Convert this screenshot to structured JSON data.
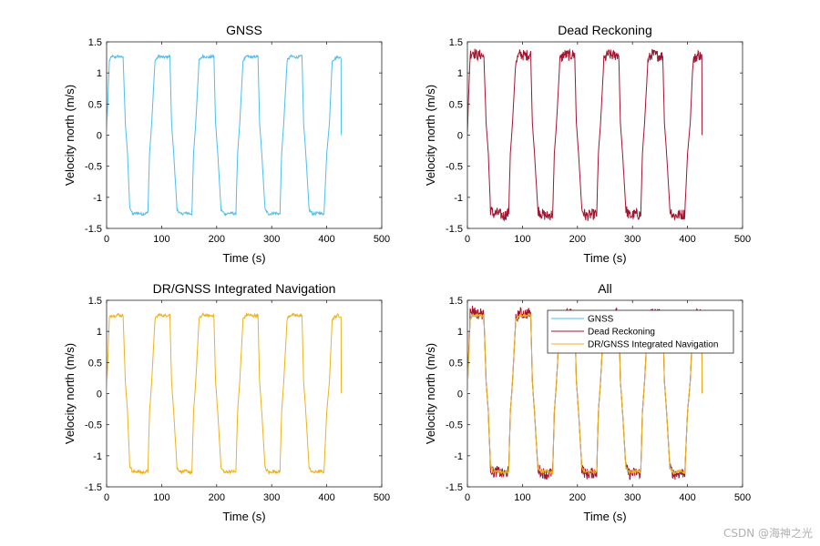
{
  "figure": {
    "watermark": "CSDN @海神之光"
  },
  "chart_data": [
    {
      "type": "line",
      "title": "GNSS",
      "xlabel": "Time (s)",
      "ylabel": "Velocity north (m/s)",
      "xlim": [
        0,
        500
      ],
      "ylim": [
        -1.5,
        1.5
      ],
      "xticks": [
        0,
        100,
        200,
        300,
        400,
        500
      ],
      "yticks": [
        -1.5,
        -1,
        -0.5,
        0,
        0.5,
        1,
        1.5
      ],
      "series": [
        {
          "name": "GNSS",
          "color": "#4DBEEE",
          "noise": 0.02,
          "x": [
            0,
            2,
            5,
            10,
            15,
            20,
            25,
            30,
            34,
            38,
            42,
            47,
            55,
            65,
            75,
            78,
            82,
            88,
            95,
            105,
            115,
            118,
            122,
            128,
            135,
            145,
            155,
            158,
            162,
            168,
            175,
            185,
            195,
            198,
            202,
            208,
            215,
            225,
            235,
            238,
            242,
            248,
            255,
            265,
            275,
            278,
            282,
            288,
            295,
            305,
            315,
            318,
            322,
            328,
            335,
            345,
            355,
            358,
            362,
            368,
            375,
            385,
            395,
            400,
            405,
            410,
            420,
            426,
            426.5
          ],
          "y": [
            0,
            0.5,
            1.2,
            1.27,
            1.25,
            1.27,
            1.26,
            1.25,
            0.2,
            -0.3,
            -1.15,
            -1.27,
            -1.25,
            -1.27,
            -1.25,
            -0.3,
            0.2,
            1.2,
            1.27,
            1.25,
            1.27,
            0.2,
            -0.3,
            -1.2,
            -1.27,
            -1.25,
            -1.27,
            -0.3,
            0.2,
            1.2,
            1.27,
            1.25,
            1.27,
            0.2,
            -0.3,
            -1.2,
            -1.27,
            -1.25,
            -1.27,
            -0.3,
            0.2,
            1.2,
            1.27,
            1.25,
            1.27,
            0.2,
            -0.3,
            -1.2,
            -1.27,
            -1.25,
            -1.27,
            -0.3,
            0.2,
            1.2,
            1.27,
            1.25,
            1.27,
            0.2,
            -0.3,
            -1.2,
            -1.27,
            -1.25,
            -1.27,
            -0.3,
            0.2,
            1.2,
            1.26,
            1.24,
            0
          ]
        }
      ]
    },
    {
      "type": "line",
      "title": "Dead Reckoning",
      "xlabel": "Time (s)",
      "ylabel": "Velocity north (m/s)",
      "xlim": [
        0,
        500
      ],
      "ylim": [
        -1.5,
        1.5
      ],
      "xticks": [
        0,
        100,
        200,
        300,
        400,
        500
      ],
      "yticks": [
        -1.5,
        -1,
        -0.5,
        0,
        0.5,
        1,
        1.5
      ],
      "series": [
        {
          "name": "Dead Reckoning",
          "color": "#A2142F",
          "noise": 0.09,
          "x": [
            0,
            2,
            5,
            10,
            15,
            20,
            25,
            30,
            34,
            38,
            42,
            47,
            55,
            65,
            75,
            78,
            82,
            88,
            95,
            105,
            115,
            118,
            122,
            128,
            135,
            145,
            155,
            158,
            162,
            168,
            175,
            185,
            195,
            198,
            202,
            208,
            215,
            225,
            235,
            238,
            242,
            248,
            255,
            265,
            275,
            278,
            282,
            288,
            295,
            305,
            315,
            318,
            322,
            328,
            335,
            345,
            355,
            358,
            362,
            368,
            375,
            385,
            395,
            400,
            405,
            410,
            420,
            426,
            426.5
          ],
          "y": [
            0,
            0.6,
            1.3,
            1.35,
            1.3,
            1.28,
            1.3,
            1.25,
            0.2,
            -0.3,
            -1.2,
            -1.27,
            -1.25,
            -1.3,
            -1.25,
            -0.3,
            0.2,
            1.2,
            1.3,
            1.28,
            1.3,
            0.2,
            -0.3,
            -1.2,
            -1.27,
            -1.3,
            -1.27,
            -0.3,
            0.2,
            1.2,
            1.3,
            1.28,
            1.3,
            0.2,
            -0.3,
            -1.2,
            -1.3,
            -1.28,
            -1.27,
            -0.3,
            0.2,
            1.2,
            1.3,
            1.28,
            1.3,
            0.2,
            -0.3,
            -1.2,
            -1.3,
            -1.27,
            -1.28,
            -0.3,
            0.2,
            1.2,
            1.3,
            1.28,
            1.27,
            0.2,
            -0.3,
            -1.2,
            -1.3,
            -1.28,
            -1.27,
            -0.3,
            0.2,
            1.2,
            1.3,
            1.25,
            0
          ]
        }
      ]
    },
    {
      "type": "line",
      "title": "DR/GNSS Integrated Navigation",
      "xlabel": "Time (s)",
      "ylabel": "Velocity north (m/s)",
      "xlim": [
        0,
        500
      ],
      "ylim": [
        -1.5,
        1.5
      ],
      "xticks": [
        0,
        100,
        200,
        300,
        400,
        500
      ],
      "yticks": [
        -1.5,
        -1,
        -0.5,
        0,
        0.5,
        1,
        1.5
      ],
      "series": [
        {
          "name": "DR/GNSS Integrated Navigation",
          "color": "#EDB120",
          "noise": 0.025,
          "x": [
            0,
            2,
            5,
            10,
            15,
            20,
            25,
            30,
            34,
            38,
            42,
            47,
            55,
            65,
            75,
            78,
            82,
            88,
            95,
            105,
            115,
            118,
            122,
            128,
            135,
            145,
            155,
            158,
            162,
            168,
            175,
            185,
            195,
            198,
            202,
            208,
            215,
            225,
            235,
            238,
            242,
            248,
            255,
            265,
            275,
            278,
            282,
            288,
            295,
            305,
            315,
            318,
            322,
            328,
            335,
            345,
            355,
            358,
            362,
            368,
            375,
            385,
            395,
            400,
            405,
            410,
            420,
            426,
            426.5
          ],
          "y": [
            0,
            0.5,
            1.22,
            1.26,
            1.25,
            1.27,
            1.26,
            1.25,
            0.2,
            -0.3,
            -1.15,
            -1.26,
            -1.25,
            -1.27,
            -1.25,
            -0.3,
            0.2,
            1.2,
            1.27,
            1.25,
            1.27,
            0.2,
            -0.3,
            -1.2,
            -1.26,
            -1.25,
            -1.27,
            -0.3,
            0.2,
            1.2,
            1.27,
            1.25,
            1.26,
            0.2,
            -0.3,
            -1.2,
            -1.27,
            -1.25,
            -1.26,
            -0.3,
            0.2,
            1.2,
            1.27,
            1.25,
            1.26,
            0.2,
            -0.3,
            -1.2,
            -1.27,
            -1.25,
            -1.26,
            -0.3,
            0.2,
            1.2,
            1.27,
            1.25,
            1.26,
            0.2,
            -0.3,
            -1.2,
            -1.27,
            -1.25,
            -1.26,
            -0.3,
            0.2,
            1.2,
            1.26,
            1.24,
            0
          ]
        }
      ]
    },
    {
      "type": "line",
      "title": "All",
      "xlabel": "Time (s)",
      "ylabel": "Velocity north (m/s)",
      "xlim": [
        0,
        500
      ],
      "ylim": [
        -1.5,
        1.5
      ],
      "xticks": [
        0,
        100,
        200,
        300,
        400,
        500
      ],
      "yticks": [
        -1.5,
        -1,
        -0.5,
        0,
        0.5,
        1,
        1.5
      ],
      "legend": {
        "position": "top-right",
        "entries": [
          "GNSS",
          "Dead Reckoning",
          "DR/GNSS Integrated Navigation"
        ]
      },
      "series": [
        {
          "name": "GNSS",
          "color": "#4DBEEE",
          "noise": 0.02,
          "x": [
            0,
            2,
            5,
            10,
            15,
            20,
            25,
            30,
            34,
            38,
            42,
            47,
            55,
            65,
            75,
            78,
            82,
            88,
            95,
            105,
            115,
            118,
            122,
            128,
            135,
            145,
            155,
            158,
            162,
            168,
            175,
            185,
            195,
            198,
            202,
            208,
            215,
            225,
            235,
            238,
            242,
            248,
            255,
            265,
            275,
            278,
            282,
            288,
            295,
            305,
            315,
            318,
            322,
            328,
            335,
            345,
            355,
            358,
            362,
            368,
            375,
            385,
            395,
            400,
            405,
            410,
            420,
            426,
            426.5
          ],
          "y": [
            0,
            0.5,
            1.2,
            1.27,
            1.25,
            1.27,
            1.26,
            1.25,
            0.2,
            -0.3,
            -1.15,
            -1.27,
            -1.25,
            -1.27,
            -1.25,
            -0.3,
            0.2,
            1.2,
            1.27,
            1.25,
            1.27,
            0.2,
            -0.3,
            -1.2,
            -1.27,
            -1.25,
            -1.27,
            -0.3,
            0.2,
            1.2,
            1.27,
            1.25,
            1.27,
            0.2,
            -0.3,
            -1.2,
            -1.27,
            -1.25,
            -1.27,
            -0.3,
            0.2,
            1.2,
            1.27,
            1.25,
            1.27,
            0.2,
            -0.3,
            -1.2,
            -1.27,
            -1.25,
            -1.27,
            -0.3,
            0.2,
            1.2,
            1.27,
            1.25,
            1.27,
            0.2,
            -0.3,
            -1.2,
            -1.27,
            -1.25,
            -1.27,
            -0.3,
            0.2,
            1.2,
            1.26,
            1.24,
            0
          ]
        },
        {
          "name": "Dead Reckoning",
          "color": "#A2142F",
          "noise": 0.09,
          "x": [
            0,
            2,
            5,
            10,
            15,
            20,
            25,
            30,
            34,
            38,
            42,
            47,
            55,
            65,
            75,
            78,
            82,
            88,
            95,
            105,
            115,
            118,
            122,
            128,
            135,
            145,
            155,
            158,
            162,
            168,
            175,
            185,
            195,
            198,
            202,
            208,
            215,
            225,
            235,
            238,
            242,
            248,
            255,
            265,
            275,
            278,
            282,
            288,
            295,
            305,
            315,
            318,
            322,
            328,
            335,
            345,
            355,
            358,
            362,
            368,
            375,
            385,
            395,
            400,
            405,
            410,
            420,
            426,
            426.5
          ],
          "y": [
            0,
            0.6,
            1.3,
            1.35,
            1.3,
            1.28,
            1.3,
            1.25,
            0.2,
            -0.3,
            -1.2,
            -1.27,
            -1.25,
            -1.3,
            -1.25,
            -0.3,
            0.2,
            1.2,
            1.3,
            1.28,
            1.3,
            0.2,
            -0.3,
            -1.2,
            -1.27,
            -1.3,
            -1.27,
            -0.3,
            0.2,
            1.2,
            1.3,
            1.28,
            1.3,
            0.2,
            -0.3,
            -1.2,
            -1.3,
            -1.28,
            -1.27,
            -0.3,
            0.2,
            1.2,
            1.3,
            1.28,
            1.3,
            0.2,
            -0.3,
            -1.2,
            -1.3,
            -1.27,
            -1.28,
            -0.3,
            0.2,
            1.2,
            1.3,
            1.28,
            1.27,
            0.2,
            -0.3,
            -1.2,
            -1.3,
            -1.28,
            -1.27,
            -0.3,
            0.2,
            1.2,
            1.3,
            1.25,
            0
          ]
        },
        {
          "name": "DR/GNSS Integrated Navigation",
          "color": "#EDB120",
          "noise": 0.025,
          "x": [
            0,
            2,
            5,
            10,
            15,
            20,
            25,
            30,
            34,
            38,
            42,
            47,
            55,
            65,
            75,
            78,
            82,
            88,
            95,
            105,
            115,
            118,
            122,
            128,
            135,
            145,
            155,
            158,
            162,
            168,
            175,
            185,
            195,
            198,
            202,
            208,
            215,
            225,
            235,
            238,
            242,
            248,
            255,
            265,
            275,
            278,
            282,
            288,
            295,
            305,
            315,
            318,
            322,
            328,
            335,
            345,
            355,
            358,
            362,
            368,
            375,
            385,
            395,
            400,
            405,
            410,
            420,
            426,
            426.5
          ],
          "y": [
            0,
            0.5,
            1.22,
            1.26,
            1.25,
            1.27,
            1.26,
            1.25,
            0.2,
            -0.3,
            -1.15,
            -1.26,
            -1.25,
            -1.27,
            -1.25,
            -0.3,
            0.2,
            1.2,
            1.27,
            1.25,
            1.27,
            0.2,
            -0.3,
            -1.2,
            -1.26,
            -1.25,
            -1.27,
            -0.3,
            0.2,
            1.2,
            1.27,
            1.25,
            1.26,
            0.2,
            -0.3,
            -1.2,
            -1.27,
            -1.25,
            -1.26,
            -0.3,
            0.2,
            1.2,
            1.27,
            1.25,
            1.26,
            0.2,
            -0.3,
            -1.2,
            -1.27,
            -1.25,
            -1.26,
            -0.3,
            0.2,
            1.2,
            1.27,
            1.25,
            1.26,
            0.2,
            -0.3,
            -1.2,
            -1.27,
            -1.25,
            -1.26,
            -0.3,
            0.2,
            1.2,
            1.26,
            1.24,
            0
          ]
        }
      ]
    }
  ]
}
